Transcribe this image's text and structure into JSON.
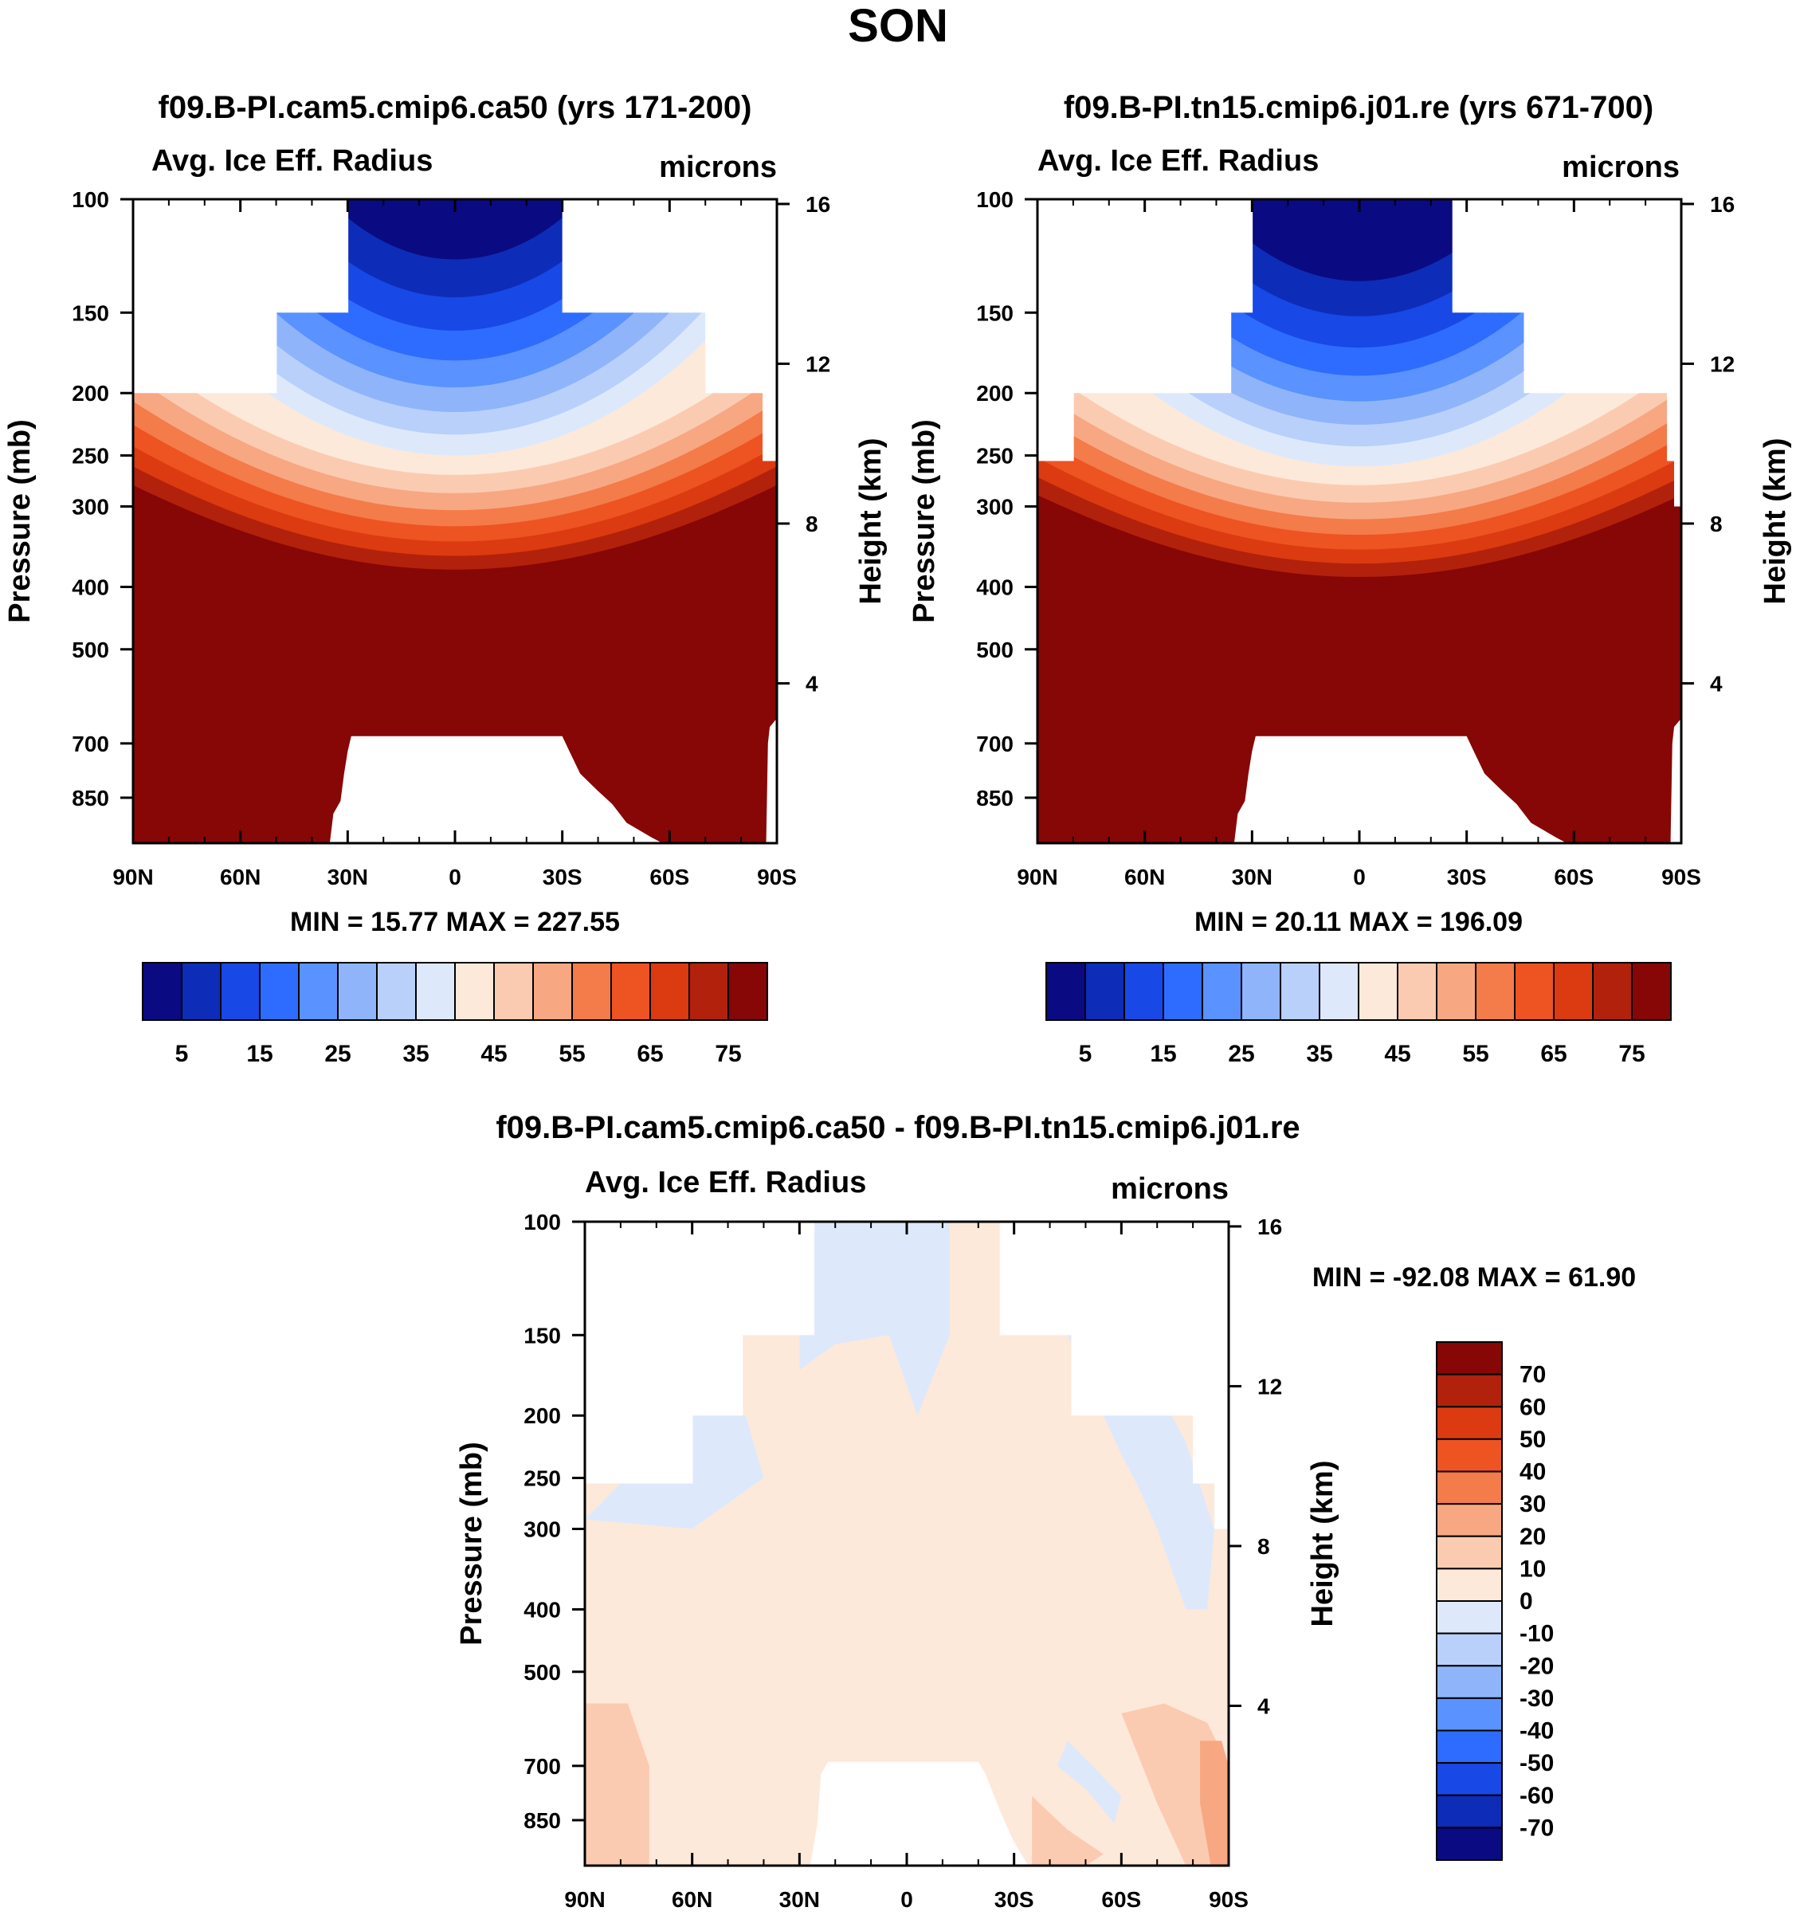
{
  "figure_title": "SON",
  "chart_data": [
    {
      "type": "contour",
      "title": "f09.B-PI.cam5.cmip6.ca50 (yrs 171-200)",
      "left_label": "Avg. Ice Eff. Radius",
      "right_label": "microns",
      "ylabel": "Pressure (mb)",
      "y2label": "Height (km)",
      "x_ticks": [
        "90N",
        "60N",
        "30N",
        "0",
        "30S",
        "60S",
        "90S"
      ],
      "y_ticks": [
        "100",
        "150",
        "200",
        "250",
        "300",
        "400",
        "500",
        "700",
        "850"
      ],
      "y_tick_values": [
        100,
        150,
        200,
        250,
        300,
        400,
        500,
        700,
        850
      ],
      "y2_ticks": [
        "16",
        "12",
        "8",
        "4"
      ],
      "y2_tick_values": [
        16,
        12,
        8,
        4
      ],
      "ylim": [
        1000,
        100
      ],
      "xlim": [
        90,
        -90
      ],
      "min_max_text": "MIN =  15.77  MAX = 227.55",
      "levels": [
        5,
        10,
        15,
        20,
        25,
        30,
        35,
        40,
        45,
        50,
        55,
        60,
        65,
        70,
        75
      ],
      "colorbar_labels": [
        "5",
        "15",
        "25",
        "35",
        "45",
        "55",
        "65",
        "75"
      ]
    },
    {
      "type": "contour",
      "title": "f09.B-PI.tn15.cmip6.j01.re (yrs 671-700)",
      "left_label": "Avg. Ice Eff. Radius",
      "right_label": "microns",
      "ylabel": "Pressure (mb)",
      "y2label": "Height (km)",
      "x_ticks": [
        "90N",
        "60N",
        "30N",
        "0",
        "30S",
        "60S",
        "90S"
      ],
      "y_ticks": [
        "100",
        "150",
        "200",
        "250",
        "300",
        "400",
        "500",
        "700",
        "850"
      ],
      "y_tick_values": [
        100,
        150,
        200,
        250,
        300,
        400,
        500,
        700,
        850
      ],
      "y2_ticks": [
        "16",
        "12",
        "8",
        "4"
      ],
      "y2_tick_values": [
        16,
        12,
        8,
        4
      ],
      "ylim": [
        1000,
        100
      ],
      "xlim": [
        90,
        -90
      ],
      "min_max_text": "MIN =  20.11  MAX = 196.09",
      "levels": [
        5,
        10,
        15,
        20,
        25,
        30,
        35,
        40,
        45,
        50,
        55,
        60,
        65,
        70,
        75
      ],
      "colorbar_labels": [
        "5",
        "15",
        "25",
        "35",
        "45",
        "55",
        "65",
        "75"
      ]
    },
    {
      "type": "contour",
      "title": "f09.B-PI.cam5.cmip6.ca50 - f09.B-PI.tn15.cmip6.j01.re",
      "left_label": "Avg. Ice Eff. Radius",
      "right_label": "microns",
      "ylabel": "Pressure (mb)",
      "y2label": "Height (km)",
      "x_ticks": [
        "90N",
        "60N",
        "30N",
        "0",
        "30S",
        "60S",
        "90S"
      ],
      "y_ticks": [
        "100",
        "150",
        "200",
        "250",
        "300",
        "400",
        "500",
        "700",
        "850"
      ],
      "y_tick_values": [
        100,
        150,
        200,
        250,
        300,
        400,
        500,
        700,
        850
      ],
      "y2_ticks": [
        "16",
        "12",
        "8",
        "4"
      ],
      "y2_tick_values": [
        16,
        12,
        8,
        4
      ],
      "ylim": [
        1000,
        100
      ],
      "xlim": [
        90,
        -90
      ],
      "min_max_text": "MIN = -92.08  MAX =  61.90",
      "levels": [
        -70,
        -60,
        -50,
        -40,
        -30,
        -20,
        -10,
        0,
        10,
        20,
        30,
        40,
        50,
        60,
        70
      ],
      "colorbar_labels": [
        "70",
        "60",
        "50",
        "40",
        "30",
        "20",
        "10",
        "0",
        "-10",
        "-20",
        "-30",
        "-40",
        "-50",
        "-60",
        "-70"
      ]
    }
  ],
  "colors": {
    "abs_scale": [
      "#0a0a82",
      "#0d2cb8",
      "#1848e6",
      "#2e6cff",
      "#5a92ff",
      "#8fb4fa",
      "#b9d0fb",
      "#dde9fb",
      "#fde9da",
      "#fbcbb1",
      "#f8a783",
      "#f47b4a",
      "#ee5322",
      "#dc3a10",
      "#b2210b",
      "#870606"
    ],
    "diff_scale": [
      "#0a0a82",
      "#0d2cb8",
      "#1848e6",
      "#2e6cff",
      "#5a92ff",
      "#8fb4fa",
      "#b9d0fb",
      "#dde9fb",
      "#fde9da",
      "#fbcbb1",
      "#f8a783",
      "#f47b4a",
      "#ee5322",
      "#dc3a10",
      "#b2210b",
      "#870606"
    ]
  }
}
